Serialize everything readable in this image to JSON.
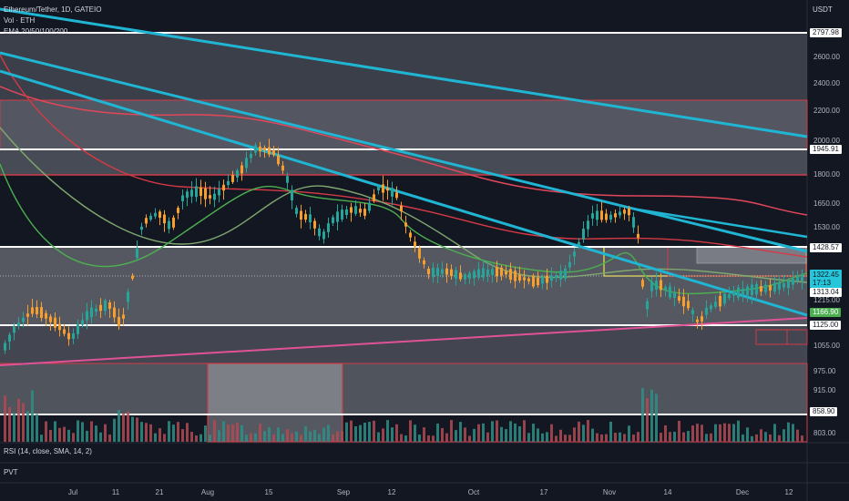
{
  "header": {
    "symbol_line": "Ethereum/Tether, 1D, GATEIO",
    "volume_label": "Vol · ETH",
    "ema_label": "EMA 20/50/100/200"
  },
  "price_axis": {
    "currency": "USDT",
    "ticks": [
      "2600.00",
      "2400.00",
      "2200.00",
      "2000.00",
      "1800.00",
      "1650.00",
      "1530.00",
      "1215.00",
      "1055.00",
      "975.00",
      "915.00",
      "803.00"
    ],
    "tagged_levels": [
      {
        "value": "2797.98",
        "style": "white"
      },
      {
        "value": "1945.91",
        "style": "white"
      },
      {
        "value": "1428.57",
        "style": "white"
      },
      {
        "value": "1313.04",
        "style": "white"
      },
      {
        "value": "1125.00",
        "style": "white"
      },
      {
        "value": "858.90",
        "style": "white"
      }
    ],
    "last_price": {
      "value": "1322.45",
      "countdown": "17:13"
    },
    "ema_tag": {
      "value": "1166.90"
    }
  },
  "time_axis": {
    "ticks": [
      "Jul",
      "11",
      "21",
      "Aug",
      "15",
      "Sep",
      "12",
      "Oct",
      "17",
      "Nov",
      "14",
      "Dec",
      "12"
    ]
  },
  "panes": {
    "rsi_label": "RSI (14, close, SMA, 14, 2)",
    "pvt_label": "PVT"
  },
  "colors": {
    "background": "#131722",
    "up": "#26a69a",
    "down": "#f89e2d",
    "ema20": "#4caf50",
    "ema50": "#7fa76f",
    "ema100": "#d33a45",
    "ema200": "#e0475a",
    "trendline": "#20b5d3",
    "support_line": "#e05297",
    "level_line": "#ffffff",
    "zone_red": "#d23b46",
    "zone_yellow": "#e6d84a"
  },
  "icons": {
    "chart_type": "candlestick-chart"
  }
}
